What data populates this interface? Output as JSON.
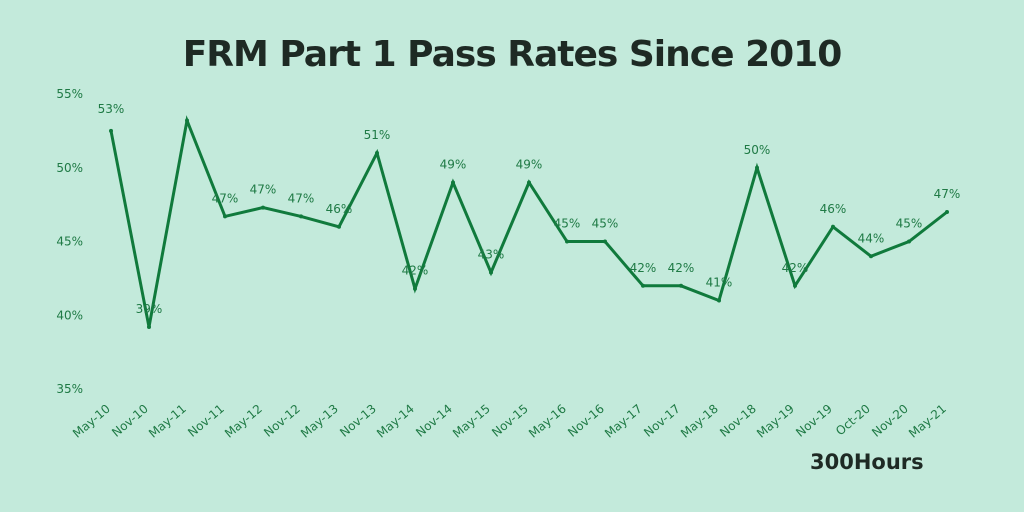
{
  "chart_data": {
    "type": "line",
    "title": "FRM Part 1 Pass Rates Since 2010",
    "categories": [
      "May-10",
      "Nov-10",
      "May-11",
      "Nov-11",
      "May-12",
      "Nov-12",
      "May-13",
      "Nov-13",
      "May-14",
      "Nov-14",
      "May-15",
      "Nov-15",
      "May-16",
      "Nov-16",
      "May-17",
      "Nov-17",
      "May-18",
      "Nov-18",
      "May-19",
      "Nov-19",
      "Oct-20",
      "Nov-20",
      "May-21"
    ],
    "values": [
      52.5,
      39.2,
      53.2,
      46.7,
      47.3,
      46.7,
      46.0,
      51.0,
      41.8,
      49.0,
      42.9,
      49.0,
      45.0,
      45.0,
      42.0,
      42.0,
      41.0,
      50.0,
      42.0,
      46.0,
      44.0,
      45.0,
      47.0
    ],
    "data_labels": [
      "53%",
      "39%",
      "",
      "47%",
      "47%",
      "47%",
      "46%",
      "51%",
      "42%",
      "49%",
      "43%",
      "49%",
      "45%",
      "45%",
      "42%",
      "42%",
      "41%",
      "50%",
      "42%",
      "46%",
      "44%",
      "45%",
      "47%"
    ],
    "y_ticks": [
      "35%",
      "40%",
      "45%",
      "50%",
      "55%"
    ],
    "ylim": [
      35,
      55
    ],
    "xlabel": "",
    "ylabel": "",
    "grid": false,
    "colors": {
      "line": "#107a3c",
      "label": "#1f7a45",
      "background": "#c3eadb",
      "title": "#1e2a24"
    }
  },
  "brand": "300Hours"
}
